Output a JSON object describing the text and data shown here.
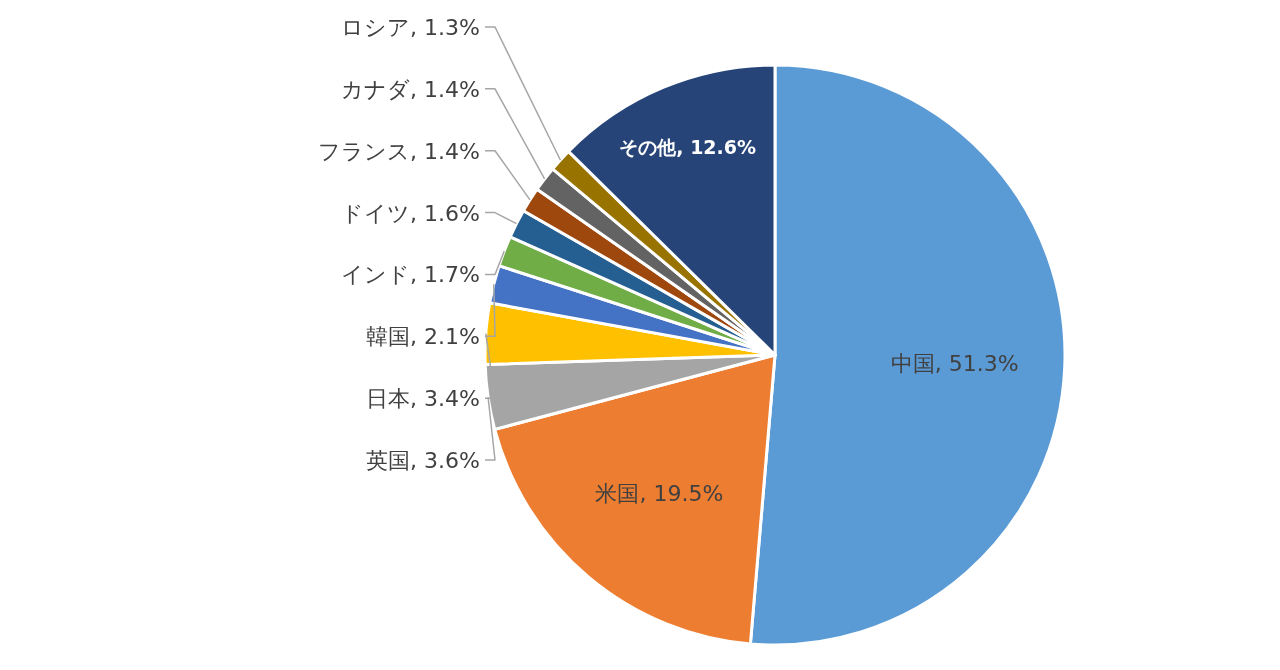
{
  "chart_data": {
    "type": "pie",
    "categories": [
      "中国",
      "米国",
      "英国",
      "日本",
      "韓国",
      "インド",
      "ドイツ",
      "フランス",
      "カナダ",
      "ロシア",
      "その他"
    ],
    "values": [
      51.3,
      19.5,
      3.6,
      3.4,
      2.1,
      1.7,
      1.6,
      1.4,
      1.4,
      1.3,
      12.6
    ],
    "colors": [
      "#5b9bd5",
      "#ed7d31",
      "#a5a5a5",
      "#ffc000",
      "#4472c4",
      "#70ad47",
      "#255e91",
      "#9e480e",
      "#636363",
      "#997300",
      "#264478"
    ],
    "value_labels": [
      "51.3%",
      "19.5%",
      "3.6%",
      "3.4%",
      "2.1%",
      "1.7%",
      "1.6%",
      "1.4%",
      "1.4%",
      "1.3%",
      "12.6%"
    ]
  }
}
